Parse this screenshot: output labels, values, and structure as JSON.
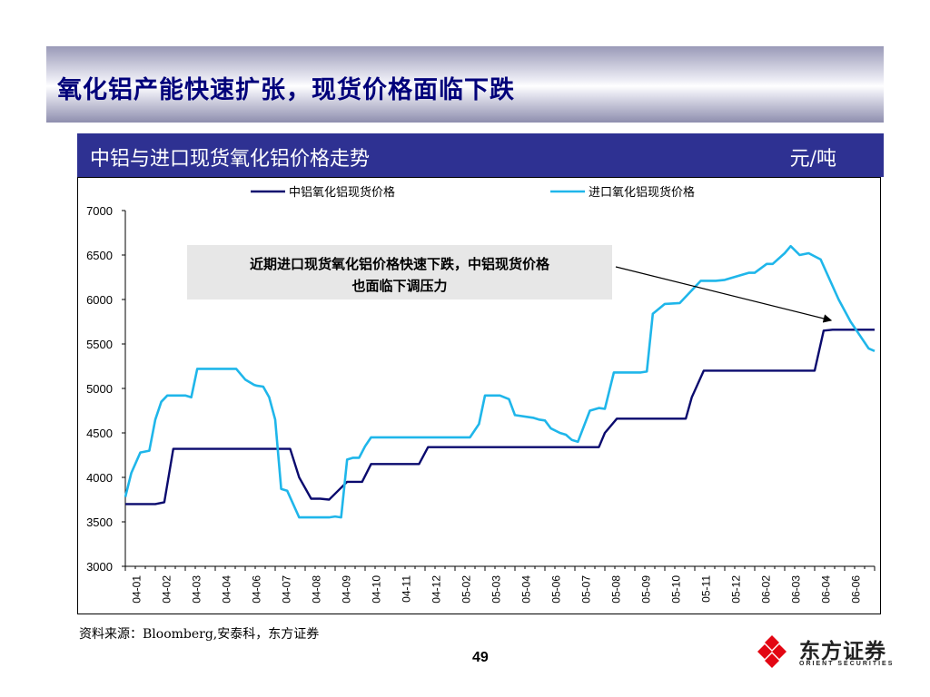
{
  "slide": {
    "title": "氧化铝产能快速扩张，现货价格面临下跌",
    "page_number": "49",
    "source": "资料来源：Bloomberg,安泰科，东方证券"
  },
  "chart_header": {
    "title": "中铝与进口现货氧化铝价格走势",
    "unit": "元/吨",
    "background_color": "#2e3192"
  },
  "logo": {
    "name_cn": "东方证券",
    "name_en": "ORIENT SECURITIES",
    "icon": "diamond-pinwheel-icon",
    "color": "#e30613"
  },
  "chart_data": {
    "type": "line",
    "ylim": [
      3000,
      7000
    ],
    "yticks": [
      3000,
      3500,
      4000,
      4500,
      5000,
      5500,
      6000,
      6500,
      7000
    ],
    "x_tick_labels": [
      "04-01",
      "04-02",
      "04-03",
      "04-04",
      "04-06",
      "04-07",
      "04-08",
      "04-09",
      "04-10",
      "04-11",
      "04-12",
      "05-02",
      "05-03",
      "05-04",
      "05-06",
      "05-07",
      "05-08",
      "05-09",
      "05-10",
      "05-11",
      "05-12",
      "06-02",
      "06-03",
      "06-04",
      "06-06"
    ],
    "xlim": [
      2004.0,
      2006.5
    ],
    "legend_position": "top",
    "annotation": {
      "text_line1": "近期进口现货氧化铝价格快速下跌，中铝现货价格",
      "text_line2": "也面临下调压力"
    },
    "series": [
      {
        "name": "中铝氧化铝现货价格",
        "color": "#0a0a6e",
        "x": [
          2004.0,
          2004.1,
          2004.13,
          2004.16,
          2004.55,
          2004.58,
          2004.62,
          2004.65,
          2004.68,
          2004.71,
          2004.74,
          2004.76,
          2004.79,
          2004.82,
          2004.86,
          2004.98,
          2005.01,
          2005.04,
          2005.58,
          2005.6,
          2005.64,
          2005.87,
          2005.89,
          2005.93,
          2006.3,
          2006.33,
          2006.36,
          2006.5
        ],
        "values": [
          3700,
          3700,
          3720,
          4320,
          4320,
          4000,
          3760,
          3760,
          3750,
          3850,
          3950,
          3950,
          3950,
          4150,
          4150,
          4150,
          4340,
          4340,
          4340,
          4500,
          4660,
          4660,
          4900,
          5200,
          5200,
          5650,
          5660,
          5660
        ]
      },
      {
        "name": "进口氧化铝现货价格",
        "color": "#1fb6ea",
        "x": [
          2004.0,
          2004.02,
          2004.05,
          2004.08,
          2004.1,
          2004.12,
          2004.14,
          2004.2,
          2004.22,
          2004.24,
          2004.37,
          2004.4,
          2004.43,
          2004.44,
          2004.46,
          2004.48,
          2004.5,
          2004.52,
          2004.54,
          2004.58,
          2004.68,
          2004.7,
          2004.72,
          2004.74,
          2004.76,
          2004.78,
          2004.8,
          2004.82,
          2005.15,
          2005.18,
          2005.2,
          2005.25,
          2005.28,
          2005.3,
          2005.36,
          2005.38,
          2005.4,
          2005.42,
          2005.45,
          2005.47,
          2005.49,
          2005.51,
          2005.55,
          2005.58,
          2005.6,
          2005.63,
          2005.72,
          2005.74,
          2005.76,
          2005.8,
          2005.85,
          2005.92,
          2005.97,
          2006.0,
          2006.08,
          2006.1,
          2006.14,
          2006.16,
          2006.2,
          2006.22,
          2006.25,
          2006.28,
          2006.32,
          2006.34,
          2006.38,
          2006.42,
          2006.45,
          2006.48,
          2006.5
        ],
        "values": [
          3780,
          4050,
          4280,
          4300,
          4650,
          4850,
          4920,
          4920,
          4900,
          5220,
          5220,
          5100,
          5040,
          5030,
          5020,
          4900,
          4650,
          3870,
          3850,
          3550,
          3550,
          3560,
          3550,
          4200,
          4220,
          4220,
          4350,
          4450,
          4450,
          4600,
          4920,
          4920,
          4880,
          4700,
          4670,
          4650,
          4640,
          4550,
          4500,
          4480,
          4420,
          4400,
          4750,
          4780,
          4770,
          5180,
          5180,
          5190,
          5840,
          5950,
          5960,
          6210,
          6210,
          6220,
          6300,
          6300,
          6400,
          6400,
          6520,
          6600,
          6500,
          6520,
          6450,
          6300,
          6000,
          5750,
          5600,
          5450,
          5420
        ]
      }
    ]
  }
}
